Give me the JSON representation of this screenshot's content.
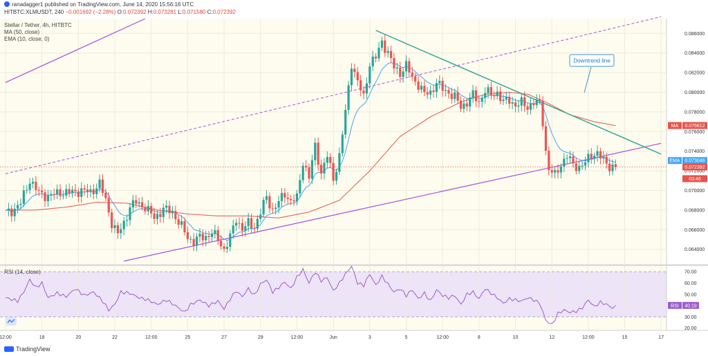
{
  "header": {
    "byline": "ranadagger1 published on TradingView.com, June 14, 2020 15:56:16 UTC",
    "symbol_line": "HITBTC:XLMUSDT, 240",
    "change": "−0.001692 (−2.28%)",
    "open_label": "O:",
    "open": "0.072392",
    "high_label": "H:",
    "high": "0.073281",
    "low_label": "L:",
    "low": "0.071580",
    "close_label": "C:",
    "close": "0.072392"
  },
  "legend": {
    "title": "Stellar / Tether, 4h, HITBTC",
    "ma": "MA (50, close)",
    "ema": "EMA (10, close, 0)",
    "rsi": "RSI (14, close)"
  },
  "annotation": "Downtrend line",
  "footer": {
    "brand": "TradingView"
  },
  "colors": {
    "up": "#26a69a",
    "down": "#ef5350",
    "ma": "#e8534a",
    "ema": "#42a5f5",
    "channel": "#a64de6",
    "downtrend": "#2ea293",
    "rsi": "#9c5ccc",
    "bg": "#fdfcee",
    "rsi_band": "#ede4f7"
  },
  "chart_data": {
    "type": "candlestick",
    "title": "Stellar / Tether, 4h, HITBTC",
    "ylim": [
      0.0625,
      0.0875
    ],
    "yticks": [
      0.064,
      0.066,
      0.068,
      0.07,
      0.072,
      0.074,
      0.076,
      0.078,
      0.08,
      0.082,
      0.084,
      0.086
    ],
    "ytick_labels": [
      "0.064000",
      "0.066000",
      "0.068000",
      "0.070000",
      "0.072000",
      "0.074000",
      "0.076000",
      "0.078000",
      "0.080000",
      "0.082000",
      "0.084000",
      "0.086000"
    ],
    "xticks": [
      {
        "i": 0,
        "label": "12:00"
      },
      {
        "i": 12,
        "label": "18"
      },
      {
        "i": 24,
        "label": "20"
      },
      {
        "i": 36,
        "label": "22"
      },
      {
        "i": 48,
        "label": "12:00"
      },
      {
        "i": 60,
        "label": "25"
      },
      {
        "i": 72,
        "label": "27"
      },
      {
        "i": 84,
        "label": "29"
      },
      {
        "i": 96,
        "label": "12:00"
      },
      {
        "i": 108,
        "label": "Jun"
      },
      {
        "i": 120,
        "label": "3"
      },
      {
        "i": 132,
        "label": "5"
      },
      {
        "i": 144,
        "label": "12:00"
      },
      {
        "i": 156,
        "label": "8"
      },
      {
        "i": 168,
        "label": "10"
      },
      {
        "i": 180,
        "label": "12"
      },
      {
        "i": 192,
        "label": "12:00"
      },
      {
        "i": 204,
        "label": "15"
      },
      {
        "i": 216,
        "label": "17"
      }
    ],
    "path": [
      [
        0,
        0.0677
      ],
      [
        2,
        0.0679
      ],
      [
        5,
        0.0687
      ],
      [
        8,
        0.0711
      ],
      [
        11,
        0.0697
      ],
      [
        14,
        0.0694
      ],
      [
        18,
        0.0698
      ],
      [
        22,
        0.0698
      ],
      [
        25,
        0.07
      ],
      [
        28,
        0.0698
      ],
      [
        31,
        0.0707
      ],
      [
        33,
        0.069
      ],
      [
        35,
        0.0667
      ],
      [
        37,
        0.0655
      ],
      [
        39,
        0.0667
      ],
      [
        41,
        0.0683
      ],
      [
        43,
        0.0688
      ],
      [
        46,
        0.0683
      ],
      [
        49,
        0.0672
      ],
      [
        52,
        0.0681
      ],
      [
        55,
        0.0678
      ],
      [
        58,
        0.0663
      ],
      [
        60,
        0.0652
      ],
      [
        62,
        0.0648
      ],
      [
        64,
        0.0652
      ],
      [
        66,
        0.0653
      ],
      [
        68,
        0.0657
      ],
      [
        70,
        0.065
      ],
      [
        72,
        0.064
      ],
      [
        74,
        0.0652
      ],
      [
        76,
        0.0671
      ],
      [
        78,
        0.0661
      ],
      [
        80,
        0.0666
      ],
      [
        82,
        0.0663
      ],
      [
        84,
        0.0678
      ],
      [
        86,
        0.0693
      ],
      [
        88,
        0.068
      ],
      [
        90,
        0.0688
      ],
      [
        92,
        0.0697
      ],
      [
        94,
        0.0689
      ],
      [
        96,
        0.0692
      ],
      [
        98,
        0.073
      ],
      [
        100,
        0.0713
      ],
      [
        102,
        0.0745
      ],
      [
        104,
        0.0718
      ],
      [
        106,
        0.0735
      ],
      [
        108,
        0.0712
      ],
      [
        110,
        0.0735
      ],
      [
        112,
        0.078
      ],
      [
        114,
        0.083
      ],
      [
        116,
        0.081
      ],
      [
        118,
        0.0795
      ],
      [
        120,
        0.083
      ],
      [
        122,
        0.0835
      ],
      [
        124,
        0.0852
      ],
      [
        126,
        0.084
      ],
      [
        128,
        0.0825
      ],
      [
        130,
        0.082
      ],
      [
        132,
        0.0827
      ],
      [
        134,
        0.0815
      ],
      [
        136,
        0.0808
      ],
      [
        138,
        0.0798
      ],
      [
        140,
        0.08
      ],
      [
        142,
        0.081
      ],
      [
        144,
        0.0803
      ],
      [
        146,
        0.08
      ],
      [
        148,
        0.0795
      ],
      [
        150,
        0.0785
      ],
      [
        152,
        0.079
      ],
      [
        154,
        0.0797
      ],
      [
        156,
        0.079
      ],
      [
        158,
        0.0802
      ],
      [
        160,
        0.0797
      ],
      [
        162,
        0.08
      ],
      [
        164,
        0.079
      ],
      [
        166,
        0.0792
      ],
      [
        168,
        0.0787
      ],
      [
        170,
        0.0789
      ],
      [
        172,
        0.0785
      ],
      [
        174,
        0.079
      ],
      [
        176,
        0.0788
      ],
      [
        177,
        0.077
      ],
      [
        178,
        0.074
      ],
      [
        179,
        0.0722
      ],
      [
        181,
        0.0715
      ],
      [
        183,
        0.0727
      ],
      [
        185,
        0.0735
      ],
      [
        187,
        0.0726
      ],
      [
        189,
        0.0724
      ],
      [
        191,
        0.0728
      ],
      [
        193,
        0.0737
      ],
      [
        195,
        0.0738
      ],
      [
        197,
        0.073
      ],
      [
        199,
        0.0725
      ],
      [
        201,
        0.0724
      ]
    ],
    "ma_path": [
      [
        0,
        0.068
      ],
      [
        10,
        0.068
      ],
      [
        20,
        0.0683
      ],
      [
        30,
        0.0688
      ],
      [
        40,
        0.0687
      ],
      [
        50,
        0.068
      ],
      [
        60,
        0.0676
      ],
      [
        70,
        0.0674
      ],
      [
        80,
        0.0674
      ],
      [
        90,
        0.0672
      ],
      [
        100,
        0.0678
      ],
      [
        110,
        0.069
      ],
      [
        120,
        0.072
      ],
      [
        130,
        0.0755
      ],
      [
        140,
        0.0775
      ],
      [
        150,
        0.079
      ],
      [
        158,
        0.0798
      ],
      [
        166,
        0.08
      ],
      [
        172,
        0.0798
      ],
      [
        178,
        0.079
      ],
      [
        186,
        0.0777
      ],
      [
        194,
        0.077
      ],
      [
        201,
        0.0766
      ]
    ],
    "rsi_path": [
      [
        0,
        47
      ],
      [
        4,
        44
      ],
      [
        6,
        52
      ],
      [
        8,
        63
      ],
      [
        10,
        56
      ],
      [
        12,
        60
      ],
      [
        14,
        47
      ],
      [
        17,
        51
      ],
      [
        20,
        48
      ],
      [
        23,
        55
      ],
      [
        26,
        49
      ],
      [
        29,
        52
      ],
      [
        32,
        44
      ],
      [
        34,
        36
      ],
      [
        36,
        41
      ],
      [
        38,
        52
      ],
      [
        41,
        51
      ],
      [
        44,
        47
      ],
      [
        47,
        45
      ],
      [
        50,
        41
      ],
      [
        53,
        45
      ],
      [
        56,
        40
      ],
      [
        59,
        34
      ],
      [
        61,
        41
      ],
      [
        64,
        45
      ],
      [
        67,
        40
      ],
      [
        70,
        44
      ],
      [
        72,
        37
      ],
      [
        74,
        46
      ],
      [
        76,
        53
      ],
      [
        78,
        48
      ],
      [
        80,
        55
      ],
      [
        82,
        49
      ],
      [
        84,
        59
      ],
      [
        86,
        63
      ],
      [
        88,
        52
      ],
      [
        90,
        56
      ],
      [
        92,
        61
      ],
      [
        94,
        55
      ],
      [
        96,
        65
      ],
      [
        98,
        72
      ],
      [
        100,
        60
      ],
      [
        102,
        70
      ],
      [
        104,
        62
      ],
      [
        106,
        65
      ],
      [
        108,
        53
      ],
      [
        110,
        60
      ],
      [
        112,
        68
      ],
      [
        114,
        75
      ],
      [
        116,
        60
      ],
      [
        118,
        58
      ],
      [
        120,
        68
      ],
      [
        122,
        58
      ],
      [
        124,
        66
      ],
      [
        126,
        59
      ],
      [
        128,
        52
      ],
      [
        130,
        55
      ],
      [
        132,
        49
      ],
      [
        134,
        54
      ],
      [
        136,
        46
      ],
      [
        138,
        51
      ],
      [
        140,
        44
      ],
      [
        142,
        54
      ],
      [
        144,
        49
      ],
      [
        146,
        47
      ],
      [
        148,
        49
      ],
      [
        150,
        41
      ],
      [
        152,
        50
      ],
      [
        154,
        52
      ],
      [
        156,
        46
      ],
      [
        158,
        55
      ],
      [
        160,
        51
      ],
      [
        162,
        47
      ],
      [
        164,
        42
      ],
      [
        166,
        46
      ],
      [
        168,
        45
      ],
      [
        170,
        44
      ],
      [
        172,
        47
      ],
      [
        174,
        45
      ],
      [
        176,
        42
      ],
      [
        178,
        27
      ],
      [
        180,
        23
      ],
      [
        182,
        33
      ],
      [
        184,
        36
      ],
      [
        186,
        34
      ],
      [
        188,
        35
      ],
      [
        190,
        38
      ],
      [
        192,
        45
      ],
      [
        194,
        39
      ],
      [
        196,
        43
      ],
      [
        198,
        41
      ],
      [
        200,
        38
      ],
      [
        201,
        40.19
      ]
    ],
    "rsi_ylim": [
      18,
      75
    ],
    "rsi_levels": [
      70,
      30
    ],
    "rsi_ticks": [
      20,
      30,
      40,
      50,
      60,
      70
    ],
    "rsi_tick_labels": [
      "20.00",
      "30.00",
      "40.00",
      "50.00",
      "60.00",
      "70.00"
    ],
    "price_tags": [
      {
        "key": "ma",
        "tag": "MA",
        "value": "0.076612",
        "price": 0.076612,
        "color": "#e8534a"
      },
      {
        "key": "ema",
        "tag": "EMA",
        "value": "0.073046",
        "price": 0.073046,
        "color": "#42a5f5"
      },
      {
        "key": "last",
        "tag": "",
        "value": "0.072392",
        "price": 0.072392,
        "color": "#e8534a"
      },
      {
        "key": "timer",
        "tag": "",
        "value": "03:46",
        "price": 0.0712,
        "color": "#e8534a"
      }
    ],
    "rsi_tag": {
      "tag": "RSI",
      "value": "40.19",
      "level": 40.19
    },
    "trendlines": {
      "channel_lower": [
        [
          39,
          0.0628
        ],
        [
          216,
          0.0748
        ]
      ],
      "channel_upper_dashed": [
        [
          0,
          0.0717
        ],
        [
          216,
          0.0877
        ]
      ],
      "channel_upper_solid": [
        [
          0,
          0.081
        ],
        [
          46,
          0.0875
        ]
      ],
      "downtrend": [
        [
          122,
          0.0863
        ],
        [
          216,
          0.0737
        ]
      ]
    },
    "last_price": 0.072392
  }
}
